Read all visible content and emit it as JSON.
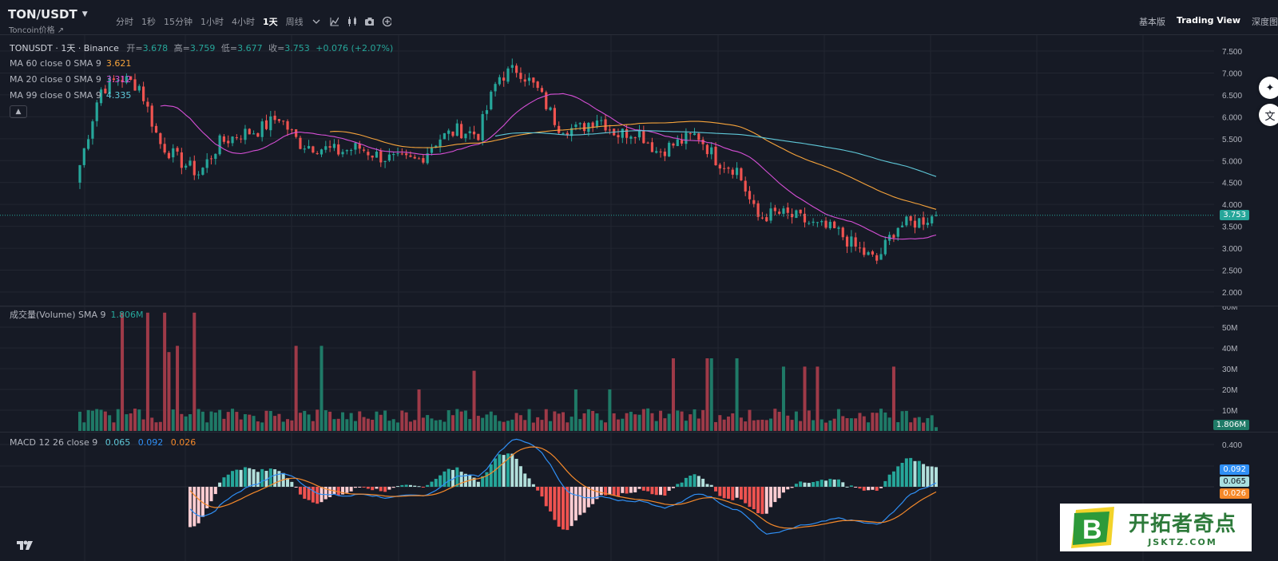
{
  "header": {
    "symbol": "TON/USDT",
    "subname": "Toncoin价格",
    "intervals": [
      "分时",
      "1秒",
      "15分钟",
      "1小时",
      "4小时",
      "1天",
      "周线"
    ],
    "active_interval": "1天",
    "right_tabs": [
      "基本版",
      "Trading View",
      "深度图"
    ],
    "active_tab": "Trading View"
  },
  "price_pane": {
    "title": "TONUSDT · 1天 · Binance",
    "ohlc": {
      "o_label": "开=",
      "o": "3.678",
      "h_label": "高=",
      "h": "3.759",
      "l_label": "低=",
      "l": "3.677",
      "c_label": "收=",
      "c": "3.753",
      "chg": "+0.076 (+2.07%)"
    },
    "ma_rows": [
      {
        "label": "MA 60 close 0 SMA 9",
        "value": "3.621",
        "color": "#f7a43b"
      },
      {
        "label": "MA 20 close 0 SMA 9",
        "value": "3.312",
        "color": "#d64fd6"
      },
      {
        "label": "MA 99 close 0 SMA 9",
        "value": "4.335",
        "color": "#5fc9d9"
      }
    ],
    "axis_ticks": [
      "7.500",
      "7.000",
      "6.500",
      "6.000",
      "5.500",
      "5.000",
      "4.500",
      "4.000",
      "3.500",
      "3.000",
      "2.500",
      "2.000"
    ],
    "last_price": "3.753"
  },
  "volume_pane": {
    "title": "成交量(Volume) SMA 9",
    "value": "1.806M",
    "axis_ticks": [
      "60M",
      "50M",
      "40M",
      "30M",
      "20M",
      "10M"
    ],
    "last_label": "1.806M"
  },
  "macd_pane": {
    "title": "MACD 12 26 close 9",
    "v1": "0.065",
    "v2": "0.092",
    "v3": "0.026",
    "axis_ticks": [
      "0.400"
    ],
    "labels": [
      "0.092",
      "0.065",
      "0.026"
    ]
  },
  "colors": {
    "up": "#26a69a",
    "down": "#ef5350",
    "up_vol": "#1f7a67",
    "down_vol": "#9e3a48",
    "ma60": "#f7a43b",
    "ma20": "#d64fd6",
    "ma99": "#5fc9d9",
    "macd": "#2f8ff5",
    "signal": "#f5892a"
  },
  "icons": [
    "caret-down-icon",
    "indicator-icon",
    "candles-icon",
    "camera-icon",
    "plus-icon",
    "sparkle-icon",
    "translate-icon",
    "tradingview-logo"
  ],
  "watermark": {
    "cn": "开拓者奇点",
    "en": "JSKTZ.COM"
  },
  "chart_data": {
    "type": "candlestick",
    "symbol": "TONUSDT",
    "interval": "1天",
    "close_path": [
      4.9,
      6.6,
      6.9,
      6.7,
      5.4,
      5.0,
      4.7,
      5.4,
      5.6,
      5.7,
      6.0,
      5.4,
      5.3,
      5.2,
      5.3,
      5.1,
      5.0,
      5.0,
      5.5,
      5.7,
      5.6,
      6.9,
      7.1,
      6.6,
      5.8,
      5.7,
      6.0,
      5.6,
      5.7,
      5.2,
      5.4,
      5.6,
      5.0,
      4.8,
      3.7,
      3.8,
      3.7,
      3.5,
      3.4,
      3.0,
      2.7,
      3.5,
      3.6,
      3.75
    ],
    "ylim": [
      2.0,
      7.5
    ],
    "last_close": 3.753,
    "ma60_last": 3.621,
    "ma20_last": 3.312,
    "ma99_last": 4.335,
    "volume_peaks_M": [
      11,
      57,
      22,
      41,
      20,
      29,
      16,
      20,
      35,
      31,
      12,
      2
    ],
    "volume_last_M": 1.806,
    "macd": {
      "macd": 0.065,
      "signal": 0.092,
      "hist": 0.026
    }
  }
}
